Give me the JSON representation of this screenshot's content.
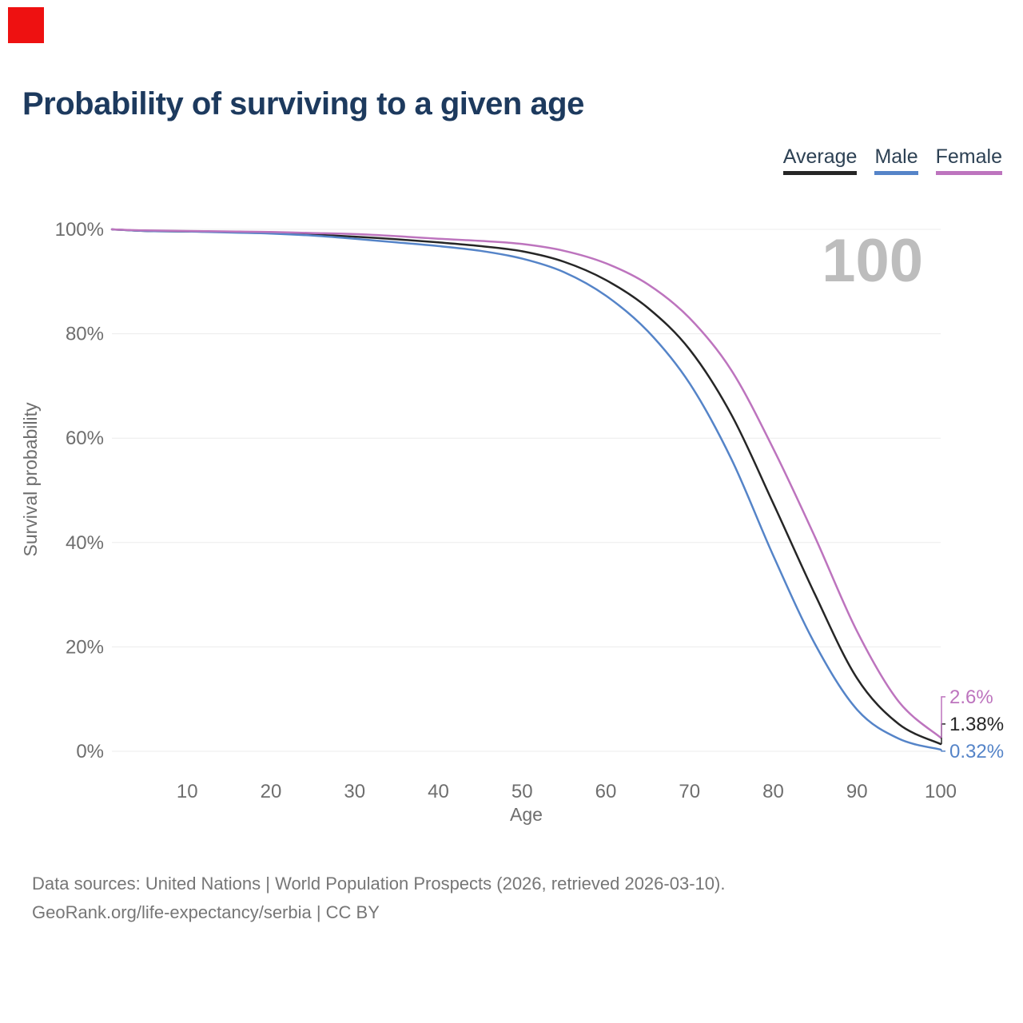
{
  "title": "Probability of surviving to a given age",
  "accent_marker": {
    "color": "#ee1111"
  },
  "legend": [
    {
      "label": "Average",
      "color": "#262626"
    },
    {
      "label": "Male",
      "color": "#5584c8"
    },
    {
      "label": "Female",
      "color": "#bd74be"
    }
  ],
  "footer": {
    "line1": "Data sources: United Nations | World Population Prospects (2026, retrieved 2026-03-10).",
    "line2": "GeoRank.org/life-expectancy/serbia | CC BY"
  },
  "chart_data": {
    "type": "line",
    "title": "Probability of surviving to a given age",
    "xlabel": "Age",
    "ylabel": "Survival probability",
    "watermark": "100",
    "xlim": [
      1,
      100
    ],
    "ylim": [
      0,
      100
    ],
    "grid": "horizontal-only",
    "legend_position": "top-right",
    "x": [
      1,
      5,
      10,
      15,
      20,
      25,
      30,
      35,
      40,
      45,
      50,
      55,
      60,
      65,
      70,
      75,
      80,
      85,
      90,
      95,
      100
    ],
    "xticks": [
      10,
      20,
      30,
      40,
      50,
      60,
      70,
      80,
      90,
      100
    ],
    "yticks": [
      {
        "value": 0,
        "label": "0%"
      },
      {
        "value": 20,
        "label": "20%"
      },
      {
        "value": 40,
        "label": "40%"
      },
      {
        "value": 60,
        "label": "60%"
      },
      {
        "value": 80,
        "label": "80%"
      },
      {
        "value": 100,
        "label": "100%"
      }
    ],
    "series": [
      {
        "name": "Average",
        "color": "#262626",
        "end_label": "1.38%",
        "values": [
          100,
          99.7,
          99.6,
          99.5,
          99.3,
          99.0,
          98.6,
          98.1,
          97.5,
          96.8,
          95.8,
          93.8,
          90.3,
          85.0,
          77.0,
          64.5,
          47.5,
          30.0,
          14.0,
          5.2,
          1.38
        ]
      },
      {
        "name": "Male",
        "color": "#5584c8",
        "end_label": "0.32%",
        "values": [
          100,
          99.7,
          99.6,
          99.4,
          99.2,
          98.8,
          98.2,
          97.5,
          96.8,
          95.9,
          94.4,
          91.8,
          87.3,
          80.5,
          70.5,
          56.0,
          37.5,
          20.5,
          8.0,
          2.4,
          0.32
        ]
      },
      {
        "name": "Female",
        "color": "#bd74be",
        "end_label": "2.6%",
        "values": [
          100,
          99.8,
          99.7,
          99.6,
          99.5,
          99.3,
          99.1,
          98.7,
          98.2,
          97.8,
          97.2,
          95.9,
          93.5,
          89.5,
          83.0,
          73.0,
          58.0,
          41.0,
          23.0,
          9.5,
          2.6
        ]
      }
    ]
  }
}
